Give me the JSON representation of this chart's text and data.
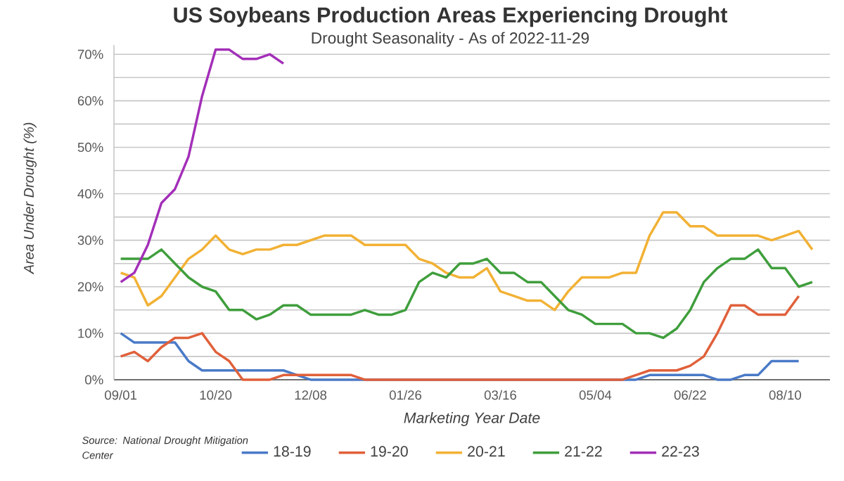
{
  "chart_data": {
    "type": "line",
    "title": "US Soybeans Production Areas Experiencing Drought",
    "subtitle": "Drought Seasonality - As of 2022-11-29",
    "xlabel": "Marketing Year Date",
    "ylabel": "Area Under Drought (%)",
    "annotations": [
      "Source: National Drought Mitigation Center"
    ],
    "categories": [
      "09/01",
      null,
      null,
      null,
      null,
      null,
      null,
      "10/20",
      null,
      null,
      null,
      null,
      null,
      null,
      "12/08",
      null,
      null,
      null,
      null,
      null,
      null,
      "01/26",
      null,
      null,
      null,
      null,
      null,
      null,
      "03/16",
      null,
      null,
      null,
      null,
      null,
      null,
      "05/04",
      null,
      null,
      null,
      null,
      null,
      null,
      "06/22",
      null,
      null,
      null,
      null,
      null,
      null,
      "08/10",
      null,
      null
    ],
    "series": [
      {
        "name": "18-19",
        "color": "#4a7ac8",
        "values": [
          10,
          8,
          8,
          8,
          8,
          4,
          2,
          2,
          2,
          2,
          2,
          2,
          2,
          1,
          0,
          0,
          0,
          0,
          0,
          0,
          0,
          0,
          0,
          0,
          0,
          0,
          0,
          0,
          0,
          0,
          0,
          0,
          0,
          0,
          0,
          0,
          0,
          0,
          0,
          1,
          1,
          1,
          1,
          1,
          0,
          0,
          1,
          1,
          4,
          4,
          4,
          null
        ]
      },
      {
        "name": "19-20",
        "color": "#e0603a",
        "values": [
          5,
          6,
          4,
          7,
          9,
          9,
          10,
          6,
          4,
          0,
          0,
          0,
          1,
          1,
          1,
          1,
          1,
          1,
          0,
          0,
          0,
          0,
          0,
          0,
          0,
          0,
          0,
          0,
          0,
          0,
          0,
          0,
          0,
          0,
          0,
          0,
          0,
          0,
          1,
          2,
          2,
          2,
          3,
          5,
          10,
          16,
          16,
          14,
          14,
          14,
          18,
          null
        ]
      },
      {
        "name": "20-21",
        "color": "#f2b134",
        "values": [
          23,
          22,
          16,
          18,
          22,
          26,
          28,
          31,
          28,
          27,
          28,
          28,
          29,
          29,
          30,
          31,
          31,
          31,
          29,
          29,
          29,
          29,
          26,
          25,
          23,
          22,
          22,
          24,
          19,
          18,
          17,
          17,
          15,
          19,
          22,
          22,
          22,
          23,
          23,
          31,
          36,
          36,
          33,
          33,
          31,
          31,
          31,
          31,
          30,
          31,
          32,
          28
        ]
      },
      {
        "name": "21-22",
        "color": "#3f9e3c",
        "values": [
          26,
          26,
          26,
          28,
          25,
          22,
          20,
          19,
          15,
          15,
          13,
          14,
          16,
          16,
          14,
          14,
          14,
          14,
          15,
          14,
          14,
          15,
          21,
          23,
          22,
          25,
          25,
          26,
          23,
          23,
          21,
          21,
          18,
          15,
          14,
          12,
          12,
          12,
          10,
          10,
          9,
          11,
          15,
          21,
          24,
          26,
          26,
          28,
          24,
          24,
          20,
          21
        ]
      },
      {
        "name": "22-23",
        "color": "#a32fb8",
        "values": [
          21,
          23,
          29,
          38,
          41,
          48,
          61,
          71,
          71,
          69,
          69,
          70,
          68,
          null,
          null,
          null,
          null,
          null,
          null,
          null,
          null,
          null,
          null,
          null,
          null,
          null,
          null,
          null,
          null,
          null,
          null,
          null,
          null,
          null,
          null,
          null,
          null,
          null,
          null,
          null,
          null,
          null,
          null,
          null,
          null,
          null,
          null,
          null,
          null,
          null,
          null,
          null
        ]
      }
    ],
    "ylim": [
      0,
      72
    ],
    "yticks": [
      {
        "value": 0,
        "label": "0%"
      },
      {
        "value": 5,
        "label": null
      },
      {
        "value": 10,
        "label": "10%"
      },
      {
        "value": 15,
        "label": null
      },
      {
        "value": 20,
        "label": "20%"
      },
      {
        "value": 25,
        "label": null
      },
      {
        "value": 30,
        "label": "30%"
      },
      {
        "value": 35,
        "label": null
      },
      {
        "value": 40,
        "label": "40%"
      },
      {
        "value": 45,
        "label": null
      },
      {
        "value": 50,
        "label": "50%"
      },
      {
        "value": 55,
        "label": null
      },
      {
        "value": 60,
        "label": "60%"
      },
      {
        "value": 65,
        "label": null
      },
      {
        "value": 70,
        "label": "70%"
      }
    ],
    "grid": "y",
    "legend": "bottom",
    "marker": "none",
    "line_style": "solid"
  }
}
